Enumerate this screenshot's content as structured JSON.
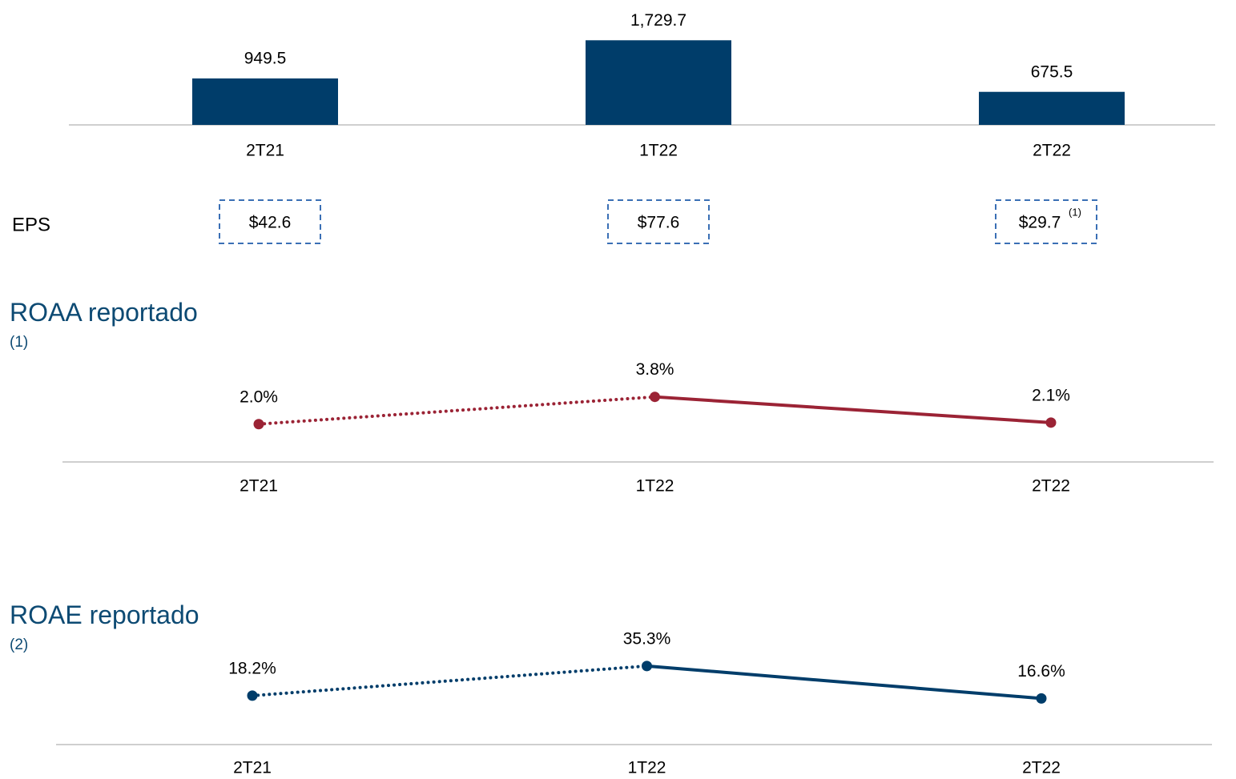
{
  "chart_data": [
    {
      "type": "bar",
      "categories": [
        "2T21",
        "1T22",
        "2T22"
      ],
      "values": [
        949.5,
        1729.7,
        675.5
      ],
      "value_labels": [
        "949.5",
        "1,729.7",
        "675.5"
      ],
      "color": "#003d6a",
      "ylim": [
        0,
        1800
      ]
    },
    {
      "type": "line",
      "title": "ROAA reportado",
      "title_note": "(1)",
      "categories": [
        "2T21",
        "1T22",
        "2T22"
      ],
      "values": [
        2.0,
        3.8,
        2.1
      ],
      "value_labels": [
        "2.0%",
        "3.8%",
        "2.1%"
      ],
      "color": "#9b2335",
      "line_styles": [
        "dotted",
        "solid"
      ],
      "ylim": [
        -0.5,
        5
      ]
    },
    {
      "type": "line",
      "title": "ROAE reportado",
      "title_note": "(2)",
      "categories": [
        "2T21",
        "1T22",
        "2T22"
      ],
      "values": [
        18.2,
        35.3,
        16.6
      ],
      "value_labels": [
        "18.2%",
        "35.3%",
        "16.6%"
      ],
      "color": "#003d6a",
      "line_styles": [
        "dotted",
        "solid"
      ],
      "ylim": [
        -10,
        50
      ]
    }
  ],
  "eps": {
    "label": "EPS",
    "values": [
      42.6,
      77.6,
      29.7
    ],
    "value_labels": [
      "$42.6",
      "$77.6",
      "$29.7"
    ],
    "footnotes": [
      null,
      null,
      "(1)"
    ]
  }
}
